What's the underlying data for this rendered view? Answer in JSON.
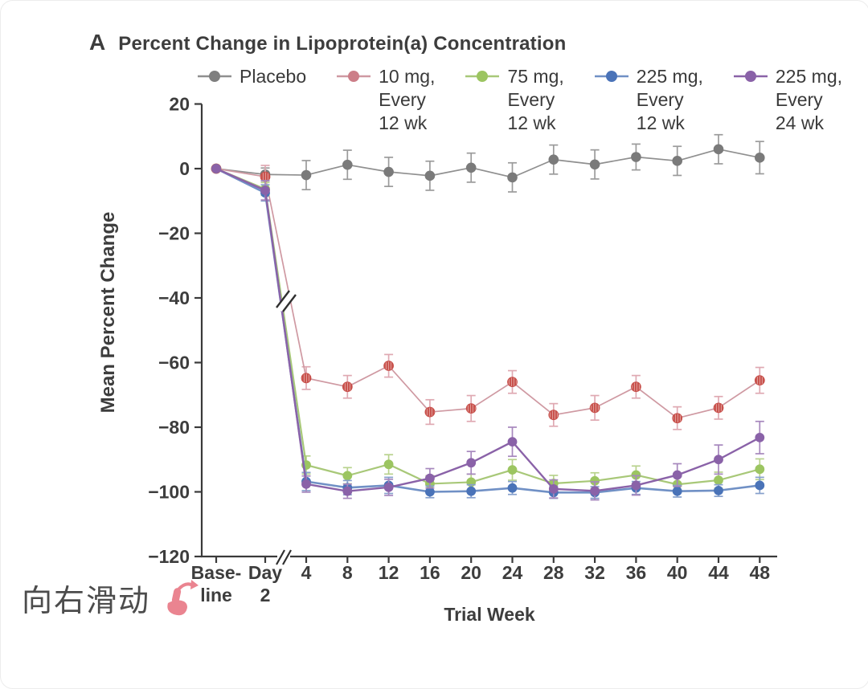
{
  "frame": {
    "swipe_hint": "向右滑动"
  },
  "chart_data": {
    "type": "line",
    "panel_label": "A",
    "title": "Percent Change in Lipoprotein(a) Concentration",
    "xlabel": "Trial Week",
    "ylabel": "Mean Percent Change",
    "ylim": [
      -120,
      20
    ],
    "yticks": [
      20,
      0,
      -20,
      -40,
      -60,
      -80,
      -100,
      -120
    ],
    "categories": [
      "Base-\nline",
      "Day\n2",
      "4",
      "8",
      "12",
      "16",
      "20",
      "24",
      "28",
      "32",
      "36",
      "40",
      "44",
      "48"
    ],
    "legend_position": "top",
    "grid": false,
    "axis_break": {
      "x_axis_between": [
        "Day 2",
        "4"
      ],
      "curve_break_near_y": -40
    },
    "axis_color": "#3a3a3a",
    "text_color": "#3d3d3d",
    "series": [
      {
        "name": "Placebo",
        "color": "#7a7a7a",
        "line_color": "#8f8f8f",
        "error_color": "#9b9b9b",
        "legend_dot_color": "#7f7f7f",
        "marker_style": "circle",
        "values": [
          0,
          -1.8,
          -2,
          1.2,
          -1,
          -2.2,
          0.3,
          -2.7,
          2.8,
          1.3,
          3.6,
          2.4,
          6,
          3.4
        ],
        "errors": [
          0,
          2,
          4.5,
          4.5,
          4.5,
          4.5,
          4.5,
          4.5,
          4.5,
          4.5,
          4,
          4.5,
          4.5,
          5
        ]
      },
      {
        "name": "10 mg,\nEvery\n12 wk",
        "color": "#c8504b",
        "line_color": "#cf99a2",
        "error_color": "#dfa9b2",
        "legend_dot_color": "#cc7e88",
        "marker_style": "striped-circle",
        "values": [
          0,
          -2.5,
          -64.8,
          -67.5,
          -61,
          -75.3,
          -74.2,
          -66,
          -76.2,
          -74,
          -67.5,
          -77.2,
          -74,
          -65.5
        ],
        "errors": [
          0,
          3.5,
          3.5,
          3.5,
          3.5,
          3.8,
          4,
          3.5,
          3.5,
          3.8,
          3.5,
          3.5,
          3.5,
          4
        ]
      },
      {
        "name": "75 mg,\nEvery\n12 wk",
        "color": "#9cc561",
        "line_color": "#a8c878",
        "error_color": "#b8d28d",
        "legend_dot_color": "#9cc561",
        "marker_style": "circle",
        "values": [
          0,
          -6.3,
          -91.7,
          -95,
          -91.5,
          -97.5,
          -97,
          -93.2,
          -97.4,
          -96.6,
          -94.8,
          -97.7,
          -96.4,
          -93
        ],
        "errors": [
          0,
          2,
          2.8,
          2.5,
          3,
          2.5,
          2.5,
          3.2,
          2.5,
          2.5,
          2.8,
          2.5,
          2.5,
          3.2
        ]
      },
      {
        "name": "225 mg,\nEvery\n12 wk",
        "color": "#4a73b8",
        "line_color": "#7090c5",
        "error_color": "#86a0cc",
        "legend_dot_color": "#4a73b8",
        "marker_style": "circle",
        "values": [
          0,
          -7.5,
          -96.8,
          -98.7,
          -98,
          -100,
          -99.8,
          -98.8,
          -100.2,
          -100.2,
          -98.8,
          -99.8,
          -99.6,
          -98
        ],
        "errors": [
          0,
          2.5,
          2.8,
          2.2,
          2.5,
          1.8,
          2,
          2,
          1.8,
          1.8,
          2,
          1.8,
          1.8,
          2.5
        ]
      },
      {
        "name": "225 mg,\nEvery\n24 wk",
        "color": "#8a62a8",
        "line_color": "#8a62a8",
        "error_color": "#a687bd",
        "legend_dot_color": "#8a62a8",
        "marker_style": "circle",
        "values": [
          0,
          -6.7,
          -97.6,
          -99.8,
          -98.6,
          -95.8,
          -91,
          -84.5,
          -99.1,
          -99.7,
          -98,
          -94.8,
          -90,
          -83.2
        ],
        "errors": [
          0,
          3,
          2.5,
          2.2,
          2.5,
          3,
          3.5,
          4.5,
          2.8,
          2.8,
          3,
          3.5,
          4.5,
          5
        ]
      }
    ]
  }
}
